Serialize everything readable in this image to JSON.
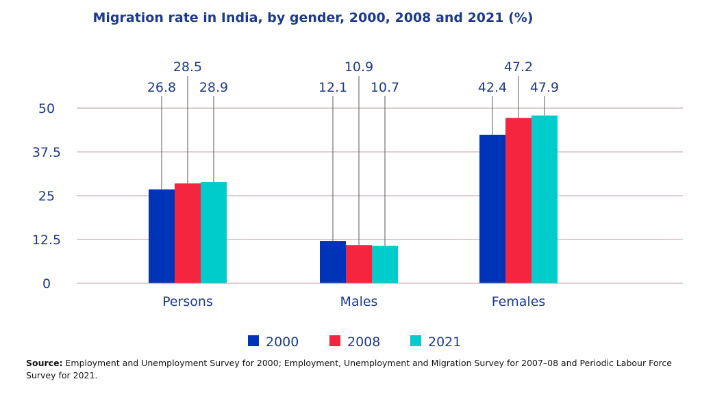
{
  "chart_data": {
    "type": "bar",
    "title": "Migration rate in India, by gender, 2000, 2008 and 2021 (%)",
    "categories": [
      "Persons",
      "Males",
      "Females"
    ],
    "series": [
      {
        "name": "2000",
        "values": [
          26.8,
          12.1,
          42.4
        ],
        "color": "#0034b8"
      },
      {
        "name": "2008",
        "values": [
          28.5,
          10.9,
          47.2
        ],
        "color": "#f5243f"
      },
      {
        "name": "2021",
        "values": [
          28.9,
          10.7,
          47.9
        ],
        "color": "#00cccc"
      }
    ],
    "yticks": [
      "0",
      "12.5",
      "25",
      "37.5",
      "50"
    ],
    "ylim": [
      0,
      50
    ],
    "grid": true,
    "gridline_color": "#c2999f",
    "text_color": "#1b3a8c",
    "legend_position": "bottom"
  },
  "source": {
    "label": "Source:",
    "text": "Employment and Unemployment Survey for 2000; Employment, Unemployment and Migration Survey for 2007–08 and Periodic Labour Force Survey for 2021."
  }
}
